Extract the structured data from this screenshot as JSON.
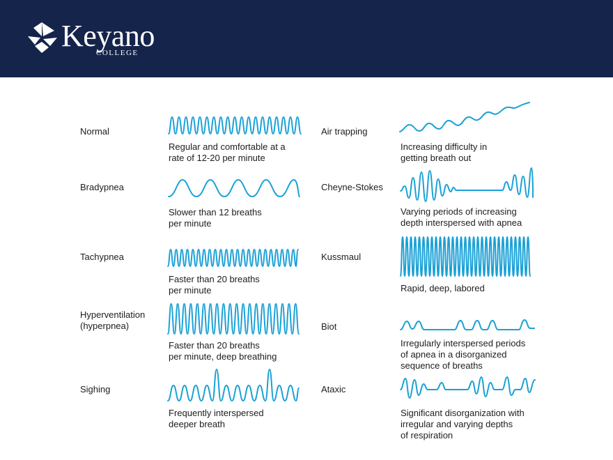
{
  "header": {
    "logo_name": "Keyano",
    "logo_sub": "COLLEGE"
  },
  "patterns": [
    {
      "key": "normal",
      "name": "Normal",
      "desc": "Regular and comfortable at a\nrate of 12-20 per minute"
    },
    {
      "key": "bradypnea",
      "name": "Bradypnea",
      "desc": "Slower than 12 breaths\nper minute"
    },
    {
      "key": "tachypnea",
      "name": "Tachypnea",
      "desc": "Faster than 20 breaths\nper minute"
    },
    {
      "key": "hyperventilation",
      "name": "Hyperventilation\n(hyperpnea)",
      "desc": "Faster than 20 breaths\nper minute, deep breathing"
    },
    {
      "key": "sighing",
      "name": "Sighing",
      "desc": "Frequently interspersed\ndeeper breath"
    },
    {
      "key": "air-trapping",
      "name": "Air trapping",
      "desc": "Increasing difficulty in\ngetting breath out"
    },
    {
      "key": "cheyne-stokes",
      "name": "Cheyne-Stokes",
      "desc": "Varying periods of increasing\ndepth interspersed with apnea"
    },
    {
      "key": "kussmaul",
      "name": "Kussmaul",
      "desc": "Rapid, deep, labored"
    },
    {
      "key": "biot",
      "name": "Biot",
      "desc": "Irregularly interspersed periods\nof apnea in a disorganized\nsequence of breaths"
    },
    {
      "key": "ataxic",
      "name": "Ataxic",
      "desc": "Significant disorganization with\nirregular and varying depths\nof respiration"
    }
  ],
  "colors": {
    "header_bg": "#15244b",
    "wave": "#1aa1d6",
    "text": "#1d1d1d"
  }
}
